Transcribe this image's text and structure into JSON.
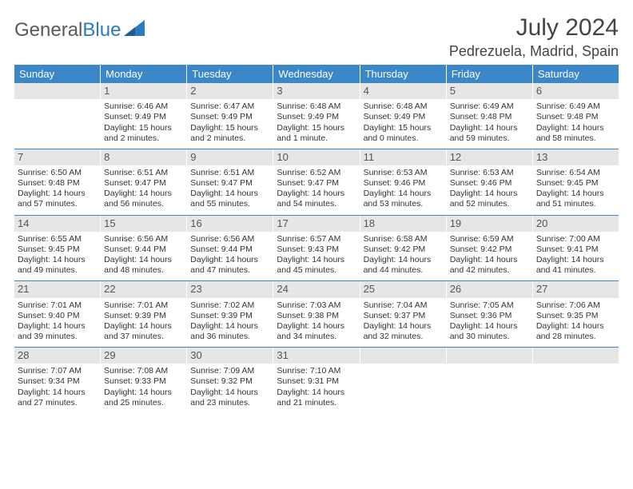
{
  "logo": {
    "text_gray": "General",
    "text_blue": "Blue"
  },
  "title": "July 2024",
  "location": "Pedrezuela, Madrid, Spain",
  "colors": {
    "header_bg": "#3b87c8",
    "header_text": "#ffffff",
    "daynum_bg": "#e6e6e6",
    "divider": "#3b87c8",
    "text": "#333333"
  },
  "day_names": [
    "Sunday",
    "Monday",
    "Tuesday",
    "Wednesday",
    "Thursday",
    "Friday",
    "Saturday"
  ],
  "weeks": [
    [
      {
        "n": "",
        "sr": "",
        "ss": "",
        "dl": ""
      },
      {
        "n": "1",
        "sr": "Sunrise: 6:46 AM",
        "ss": "Sunset: 9:49 PM",
        "dl": "Daylight: 15 hours and 2 minutes."
      },
      {
        "n": "2",
        "sr": "Sunrise: 6:47 AM",
        "ss": "Sunset: 9:49 PM",
        "dl": "Daylight: 15 hours and 2 minutes."
      },
      {
        "n": "3",
        "sr": "Sunrise: 6:48 AM",
        "ss": "Sunset: 9:49 PM",
        "dl": "Daylight: 15 hours and 1 minute."
      },
      {
        "n": "4",
        "sr": "Sunrise: 6:48 AM",
        "ss": "Sunset: 9:49 PM",
        "dl": "Daylight: 15 hours and 0 minutes."
      },
      {
        "n": "5",
        "sr": "Sunrise: 6:49 AM",
        "ss": "Sunset: 9:48 PM",
        "dl": "Daylight: 14 hours and 59 minutes."
      },
      {
        "n": "6",
        "sr": "Sunrise: 6:49 AM",
        "ss": "Sunset: 9:48 PM",
        "dl": "Daylight: 14 hours and 58 minutes."
      }
    ],
    [
      {
        "n": "7",
        "sr": "Sunrise: 6:50 AM",
        "ss": "Sunset: 9:48 PM",
        "dl": "Daylight: 14 hours and 57 minutes."
      },
      {
        "n": "8",
        "sr": "Sunrise: 6:51 AM",
        "ss": "Sunset: 9:47 PM",
        "dl": "Daylight: 14 hours and 56 minutes."
      },
      {
        "n": "9",
        "sr": "Sunrise: 6:51 AM",
        "ss": "Sunset: 9:47 PM",
        "dl": "Daylight: 14 hours and 55 minutes."
      },
      {
        "n": "10",
        "sr": "Sunrise: 6:52 AM",
        "ss": "Sunset: 9:47 PM",
        "dl": "Daylight: 14 hours and 54 minutes."
      },
      {
        "n": "11",
        "sr": "Sunrise: 6:53 AM",
        "ss": "Sunset: 9:46 PM",
        "dl": "Daylight: 14 hours and 53 minutes."
      },
      {
        "n": "12",
        "sr": "Sunrise: 6:53 AM",
        "ss": "Sunset: 9:46 PM",
        "dl": "Daylight: 14 hours and 52 minutes."
      },
      {
        "n": "13",
        "sr": "Sunrise: 6:54 AM",
        "ss": "Sunset: 9:45 PM",
        "dl": "Daylight: 14 hours and 51 minutes."
      }
    ],
    [
      {
        "n": "14",
        "sr": "Sunrise: 6:55 AM",
        "ss": "Sunset: 9:45 PM",
        "dl": "Daylight: 14 hours and 49 minutes."
      },
      {
        "n": "15",
        "sr": "Sunrise: 6:56 AM",
        "ss": "Sunset: 9:44 PM",
        "dl": "Daylight: 14 hours and 48 minutes."
      },
      {
        "n": "16",
        "sr": "Sunrise: 6:56 AM",
        "ss": "Sunset: 9:44 PM",
        "dl": "Daylight: 14 hours and 47 minutes."
      },
      {
        "n": "17",
        "sr": "Sunrise: 6:57 AM",
        "ss": "Sunset: 9:43 PM",
        "dl": "Daylight: 14 hours and 45 minutes."
      },
      {
        "n": "18",
        "sr": "Sunrise: 6:58 AM",
        "ss": "Sunset: 9:42 PM",
        "dl": "Daylight: 14 hours and 44 minutes."
      },
      {
        "n": "19",
        "sr": "Sunrise: 6:59 AM",
        "ss": "Sunset: 9:42 PM",
        "dl": "Daylight: 14 hours and 42 minutes."
      },
      {
        "n": "20",
        "sr": "Sunrise: 7:00 AM",
        "ss": "Sunset: 9:41 PM",
        "dl": "Daylight: 14 hours and 41 minutes."
      }
    ],
    [
      {
        "n": "21",
        "sr": "Sunrise: 7:01 AM",
        "ss": "Sunset: 9:40 PM",
        "dl": "Daylight: 14 hours and 39 minutes."
      },
      {
        "n": "22",
        "sr": "Sunrise: 7:01 AM",
        "ss": "Sunset: 9:39 PM",
        "dl": "Daylight: 14 hours and 37 minutes."
      },
      {
        "n": "23",
        "sr": "Sunrise: 7:02 AM",
        "ss": "Sunset: 9:39 PM",
        "dl": "Daylight: 14 hours and 36 minutes."
      },
      {
        "n": "24",
        "sr": "Sunrise: 7:03 AM",
        "ss": "Sunset: 9:38 PM",
        "dl": "Daylight: 14 hours and 34 minutes."
      },
      {
        "n": "25",
        "sr": "Sunrise: 7:04 AM",
        "ss": "Sunset: 9:37 PM",
        "dl": "Daylight: 14 hours and 32 minutes."
      },
      {
        "n": "26",
        "sr": "Sunrise: 7:05 AM",
        "ss": "Sunset: 9:36 PM",
        "dl": "Daylight: 14 hours and 30 minutes."
      },
      {
        "n": "27",
        "sr": "Sunrise: 7:06 AM",
        "ss": "Sunset: 9:35 PM",
        "dl": "Daylight: 14 hours and 28 minutes."
      }
    ],
    [
      {
        "n": "28",
        "sr": "Sunrise: 7:07 AM",
        "ss": "Sunset: 9:34 PM",
        "dl": "Daylight: 14 hours and 27 minutes."
      },
      {
        "n": "29",
        "sr": "Sunrise: 7:08 AM",
        "ss": "Sunset: 9:33 PM",
        "dl": "Daylight: 14 hours and 25 minutes."
      },
      {
        "n": "30",
        "sr": "Sunrise: 7:09 AM",
        "ss": "Sunset: 9:32 PM",
        "dl": "Daylight: 14 hours and 23 minutes."
      },
      {
        "n": "31",
        "sr": "Sunrise: 7:10 AM",
        "ss": "Sunset: 9:31 PM",
        "dl": "Daylight: 14 hours and 21 minutes."
      },
      {
        "n": "",
        "sr": "",
        "ss": "",
        "dl": ""
      },
      {
        "n": "",
        "sr": "",
        "ss": "",
        "dl": ""
      },
      {
        "n": "",
        "sr": "",
        "ss": "",
        "dl": ""
      }
    ]
  ]
}
